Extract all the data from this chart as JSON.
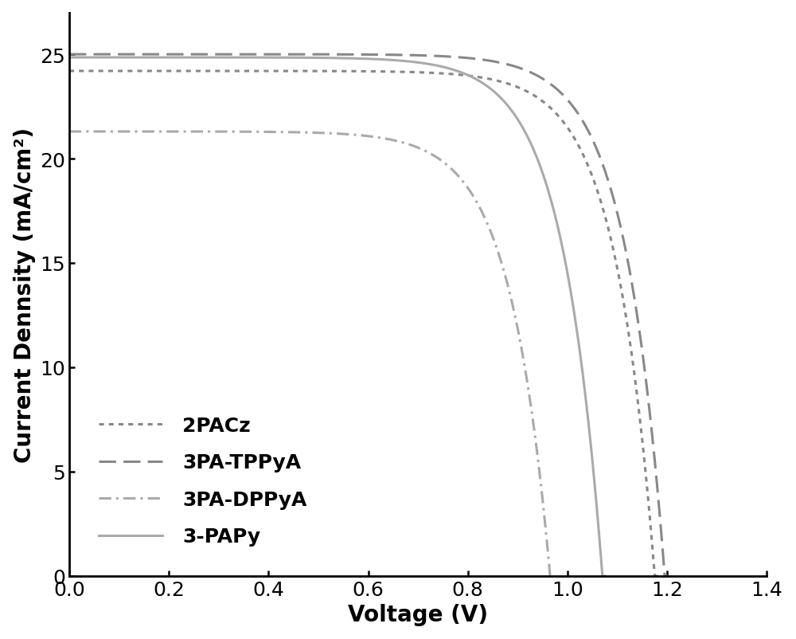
{
  "xlabel": "Voltage (V)",
  "ylabel": "Current Dennsity (mA/cm²)",
  "xlim": [
    0.0,
    1.4
  ],
  "ylim": [
    0.0,
    27
  ],
  "xticks": [
    0.0,
    0.2,
    0.4,
    0.6,
    0.8,
    1.0,
    1.2,
    1.4
  ],
  "yticks": [
    0,
    5,
    10,
    15,
    20,
    25
  ],
  "curves": [
    {
      "label": "2PACz",
      "Jsc": 24.2,
      "Voc": 1.175,
      "FF": 0.765,
      "color": "#888888",
      "linestyle": "dotted",
      "lw": 2.2
    },
    {
      "label": "3PA-TPPyA",
      "Jsc": 25.0,
      "Voc": 1.195,
      "FF": 0.795,
      "color": "#888888",
      "linestyle": "dashed",
      "lw": 2.2
    },
    {
      "label": "3PA-DPPyA",
      "Jsc": 21.3,
      "Voc": 0.965,
      "FF": 0.5,
      "color": "#aaaaaa",
      "linestyle": "dashdot",
      "lw": 2.2
    },
    {
      "label": "3-PAPy",
      "Jsc": 24.85,
      "Voc": 1.07,
      "FF": 0.785,
      "color": "#aaaaaa",
      "linestyle": "solid",
      "lw": 2.2
    }
  ],
  "legend_loc": "lower left",
  "xlabel_fontsize": 20,
  "ylabel_fontsize": 20,
  "tick_fontsize": 18,
  "legend_fontsize": 18,
  "lw_spine": 2.0
}
